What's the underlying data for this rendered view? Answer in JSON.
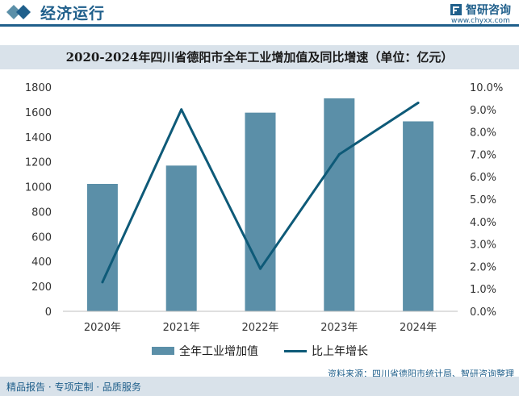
{
  "header": {
    "title": "经济运行",
    "logo_name": "智研咨询",
    "logo_url": "www.chyxx.com"
  },
  "chart_data": {
    "type": "bar",
    "title": "2020-2024年四川省德阳市全年工业增加值及同比增速（单位：亿元）",
    "categories": [
      "2020年",
      "2021年",
      "2022年",
      "2023年",
      "2024年"
    ],
    "series": [
      {
        "name": "全年工业增加值",
        "type": "bar",
        "axis": "left",
        "values": [
          1023,
          1170,
          1595,
          1710,
          1525
        ],
        "color": "#5b8fa8"
      },
      {
        "name": "比上年增长",
        "type": "line",
        "axis": "right",
        "values": [
          1.3,
          9.0,
          1.9,
          7.0,
          9.3
        ],
        "color": "#0e5a78"
      }
    ],
    "y_left": {
      "min": 0,
      "max": 1800,
      "ticks": [
        "0",
        "200",
        "400",
        "600",
        "800",
        "1000",
        "1200",
        "1400",
        "1600",
        "1800"
      ]
    },
    "y_right": {
      "min": 0,
      "max": 10,
      "ticks": [
        "0.0%",
        "1.0%",
        "2.0%",
        "3.0%",
        "4.0%",
        "5.0%",
        "6.0%",
        "7.0%",
        "8.0%",
        "9.0%",
        "10.0%"
      ]
    },
    "legend": "bottom",
    "grid": false
  },
  "source": "资料来源：四川省德阳市统计局、智研咨询整理",
  "footer": "精品报告 · 专项定制 · 品质服务"
}
